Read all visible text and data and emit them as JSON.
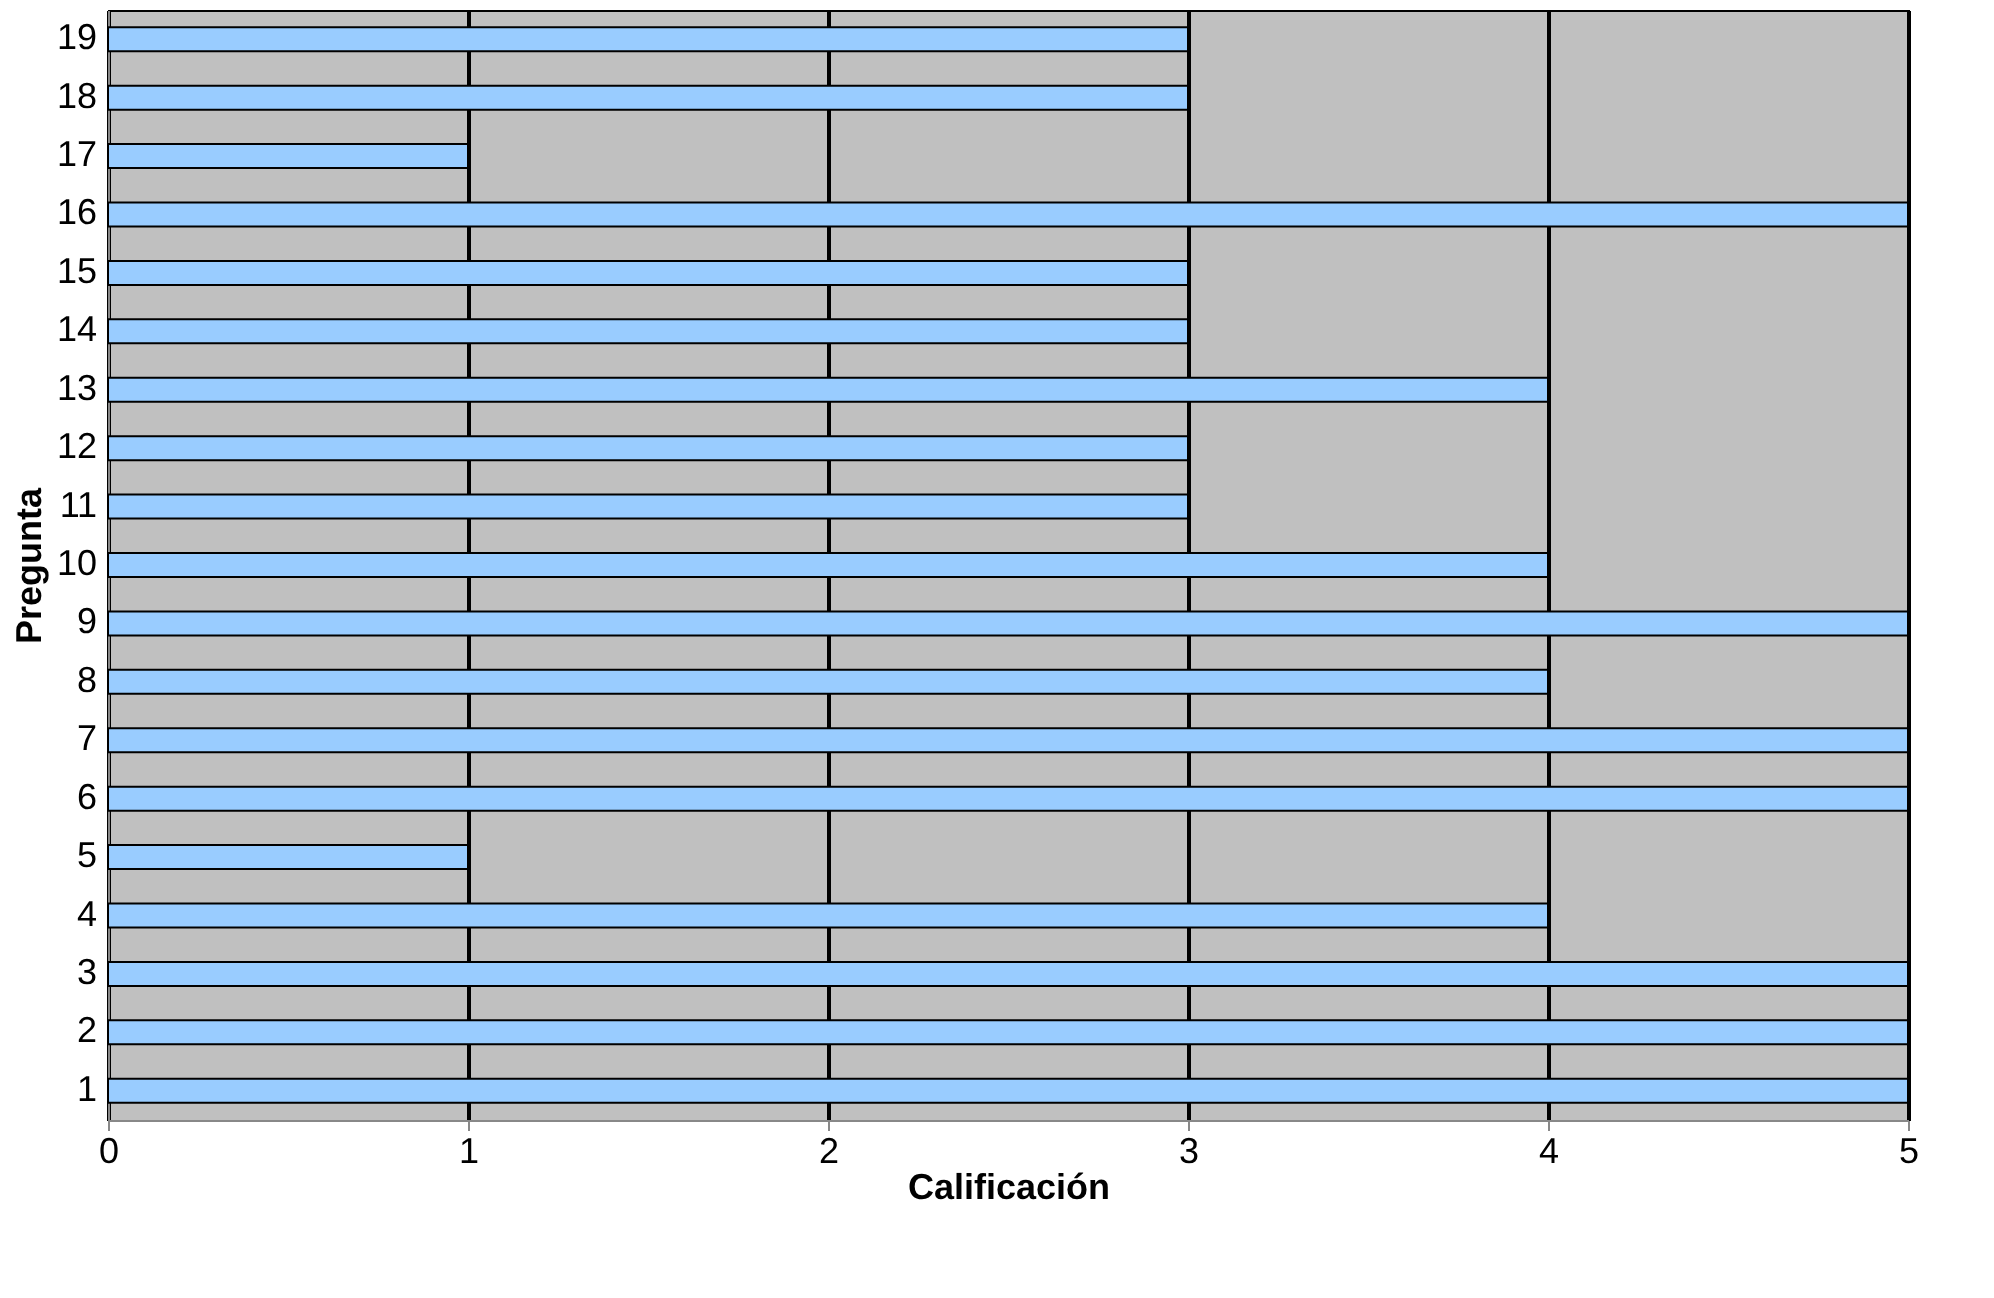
{
  "chart_data": {
    "type": "bar",
    "orientation": "horizontal",
    "xlabel": "Calificación",
    "ylabel": "Pregunta",
    "categories": [
      "19",
      "18",
      "17",
      "16",
      "15",
      "14",
      "13",
      "12",
      "11",
      "10",
      "9",
      "8",
      "7",
      "6",
      "5",
      "4",
      "3",
      "2",
      "1"
    ],
    "values": [
      3,
      3,
      1,
      5,
      3,
      3,
      4,
      3,
      3,
      4,
      5,
      4,
      5,
      5,
      1,
      4,
      5,
      5,
      5
    ],
    "color": "#99ccff",
    "xlim": [
      0,
      5
    ],
    "xticks": [
      0,
      1,
      2,
      3,
      4,
      5
    ],
    "grid": "x"
  }
}
